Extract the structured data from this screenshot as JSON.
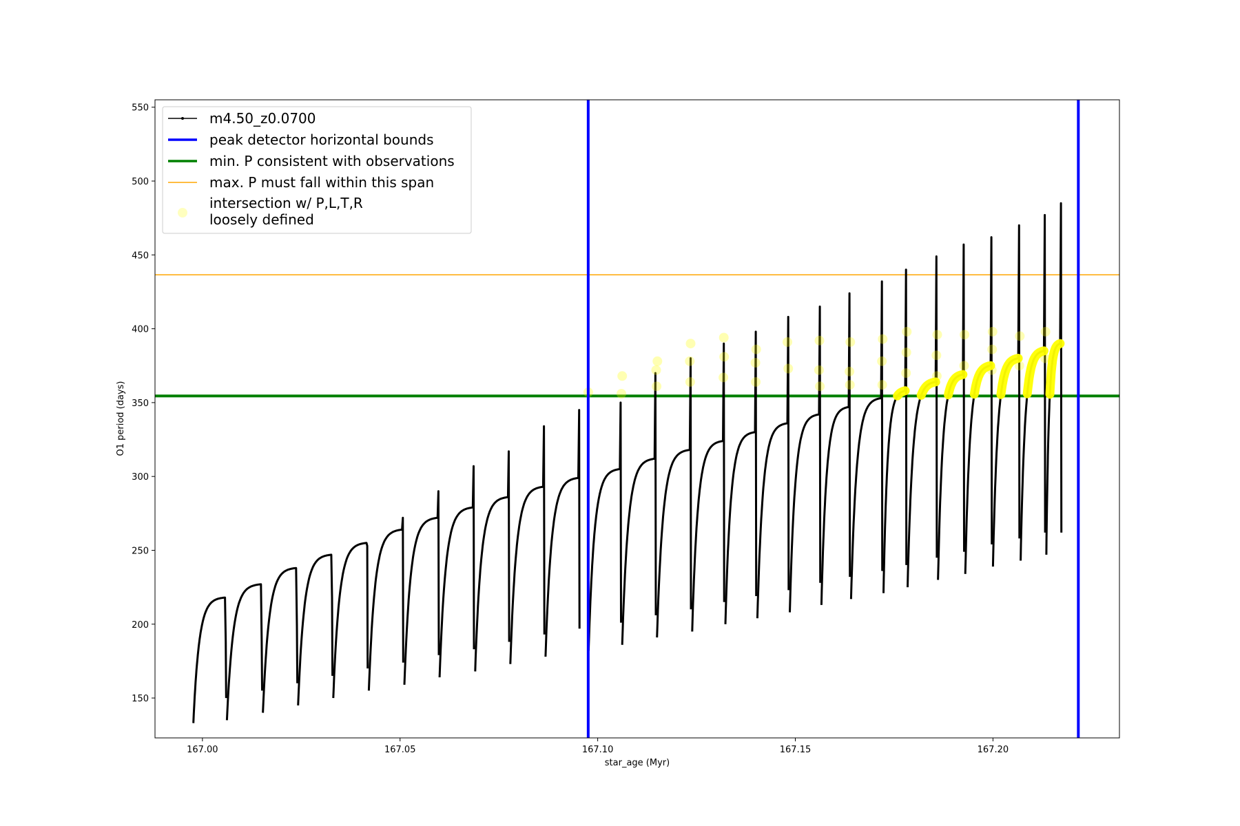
{
  "chart_data": {
    "type": "line",
    "title": "",
    "xlabel": "star_age (Myr)",
    "ylabel": "O1 period (days)",
    "xlim": [
      166.988,
      167.232
    ],
    "ylim": [
      123,
      555
    ],
    "xticks": [
      167.0,
      167.05,
      167.1,
      167.15,
      167.2
    ],
    "xtick_labels": [
      "167.00",
      "167.05",
      "167.10",
      "167.15",
      "167.20"
    ],
    "yticks": [
      150,
      200,
      250,
      300,
      350,
      400,
      450,
      500,
      550
    ],
    "ytick_labels": [
      "150",
      "200",
      "250",
      "300",
      "350",
      "400",
      "450",
      "500",
      "550"
    ],
    "grid": false,
    "legend_position": "top-left",
    "model_series": {
      "name": "m4.50_z0.0700",
      "color": "#000000",
      "cycles": [
        {
          "start": 166.9977,
          "end": 167.0057,
          "min": 133,
          "plateau": 218,
          "spike": 188
        },
        {
          "start": 167.0062,
          "end": 167.0148,
          "min": 135,
          "plateau": 227,
          "spike": 188
        },
        {
          "start": 167.0153,
          "end": 167.0237,
          "min": 140,
          "plateau": 238,
          "spike": 199
        },
        {
          "start": 167.0242,
          "end": 167.0326,
          "min": 145,
          "plateau": 247,
          "spike": 218
        },
        {
          "start": 167.0331,
          "end": 167.0415,
          "min": 150,
          "plateau": 255,
          "spike": 253
        },
        {
          "start": 167.0421,
          "end": 167.0505,
          "min": 155,
          "plateau": 264,
          "spike": 272
        },
        {
          "start": 167.0511,
          "end": 167.0595,
          "min": 159,
          "plateau": 272,
          "spike": 290
        },
        {
          "start": 167.06,
          "end": 167.0684,
          "min": 164,
          "plateau": 279,
          "spike": 307
        },
        {
          "start": 167.069,
          "end": 167.0773,
          "min": 168,
          "plateau": 286,
          "spike": 317
        },
        {
          "start": 167.0779,
          "end": 167.0862,
          "min": 173,
          "plateau": 293,
          "spike": 334
        },
        {
          "start": 167.0868,
          "end": 167.0951,
          "min": 178,
          "plateau": 299,
          "spike": 345
        },
        {
          "start": 167.0977,
          "end": 167.1056,
          "min": 182,
          "plateau": 305,
          "spike": 350
        },
        {
          "start": 167.1062,
          "end": 167.1144,
          "min": 186,
          "plateau": 312,
          "spike": 370
        },
        {
          "start": 167.115,
          "end": 167.1233,
          "min": 191,
          "plateau": 318,
          "spike": 380
        },
        {
          "start": 167.1239,
          "end": 167.1317,
          "min": 195,
          "plateau": 324,
          "spike": 390
        },
        {
          "start": 167.1323,
          "end": 167.1398,
          "min": 200,
          "plateau": 330,
          "spike": 398
        },
        {
          "start": 167.1404,
          "end": 167.148,
          "min": 204,
          "plateau": 336,
          "spike": 408
        },
        {
          "start": 167.1486,
          "end": 167.156,
          "min": 208,
          "plateau": 342,
          "spike": 415
        },
        {
          "start": 167.1566,
          "end": 167.1635,
          "min": 213,
          "plateau": 347,
          "spike": 424
        },
        {
          "start": 167.1641,
          "end": 167.1717,
          "min": 217,
          "plateau": 353,
          "spike": 432
        },
        {
          "start": 167.1723,
          "end": 167.1778,
          "min": 221,
          "plateau": 358,
          "spike": 440
        },
        {
          "start": 167.1784,
          "end": 167.1855,
          "min": 225,
          "plateau": 364,
          "spike": 449
        },
        {
          "start": 167.1861,
          "end": 167.1924,
          "min": 230,
          "plateau": 369,
          "spike": 457
        },
        {
          "start": 167.193,
          "end": 167.1994,
          "min": 234,
          "plateau": 375,
          "spike": 462
        },
        {
          "start": 167.2,
          "end": 167.2064,
          "min": 239,
          "plateau": 380,
          "spike": 470
        },
        {
          "start": 167.207,
          "end": 167.2129,
          "min": 243,
          "plateau": 385,
          "spike": 477
        },
        {
          "start": 167.2135,
          "end": 167.217,
          "min": 247,
          "plateau": 390,
          "spike": 485
        }
      ]
    },
    "reference_lines": [
      {
        "name": "peak detector horizontal bounds",
        "orientation": "vertical",
        "values": [
          167.0976,
          167.2216
        ],
        "color": "#0000ff"
      },
      {
        "name": "min. P consistent with observations",
        "orientation": "horizontal",
        "value": 354.5,
        "color": "#008000"
      },
      {
        "name": "max. P must fall within this span",
        "orientation": "horizontal",
        "value": 436.5,
        "color": "#ffa500"
      }
    ],
    "intersection_series": {
      "name": "intersection w/ P,L,T,R\nloosely defined",
      "color": "#ffff00",
      "points": [
        [
          167.0976,
          357
        ],
        [
          167.106,
          356
        ],
        [
          167.1062,
          368
        ],
        [
          167.1149,
          361
        ],
        [
          167.1148,
          372
        ],
        [
          167.1151,
          378
        ],
        [
          167.1234,
          364
        ],
        [
          167.1233,
          378
        ],
        [
          167.1235,
          390
        ],
        [
          167.1318,
          367
        ],
        [
          167.132,
          381
        ],
        [
          167.1319,
          394
        ],
        [
          167.14,
          364
        ],
        [
          167.1399,
          377
        ],
        [
          167.1401,
          386
        ],
        [
          167.1482,
          373
        ],
        [
          167.148,
          391
        ],
        [
          167.1562,
          361
        ],
        [
          167.156,
          372
        ],
        [
          167.1561,
          392
        ],
        [
          167.1638,
          362
        ],
        [
          167.1637,
          371
        ],
        [
          167.1639,
          391
        ],
        [
          167.172,
          362
        ],
        [
          167.1719,
          378
        ],
        [
          167.1721,
          393
        ],
        [
          167.178,
          370
        ],
        [
          167.1781,
          384
        ],
        [
          167.1782,
          398
        ],
        [
          167.1858,
          368
        ],
        [
          167.1857,
          382
        ],
        [
          167.1859,
          396
        ],
        [
          167.1927,
          375
        ],
        [
          167.1928,
          396
        ],
        [
          167.1997,
          372
        ],
        [
          167.1998,
          386
        ],
        [
          167.1999,
          398
        ],
        [
          167.2067,
          375
        ],
        [
          167.2068,
          395
        ],
        [
          167.2132,
          380
        ],
        [
          167.2133,
          398
        ]
      ]
    }
  },
  "legend": {
    "entries": [
      {
        "key": "model",
        "label": "m4.50_z0.0700",
        "color": "#000000"
      },
      {
        "key": "bounds",
        "label": "peak detector horizontal bounds",
        "color": "#0000ff"
      },
      {
        "key": "minp",
        "label": "min. P consistent with observations",
        "color": "#008000"
      },
      {
        "key": "maxp",
        "label": "max. P must fall within this span",
        "color": "#ffa500"
      },
      {
        "key": "intersect",
        "label_line1": "intersection w/ P,L,T,R",
        "label_line2": "loosely defined",
        "color": "#ffff00"
      }
    ]
  }
}
